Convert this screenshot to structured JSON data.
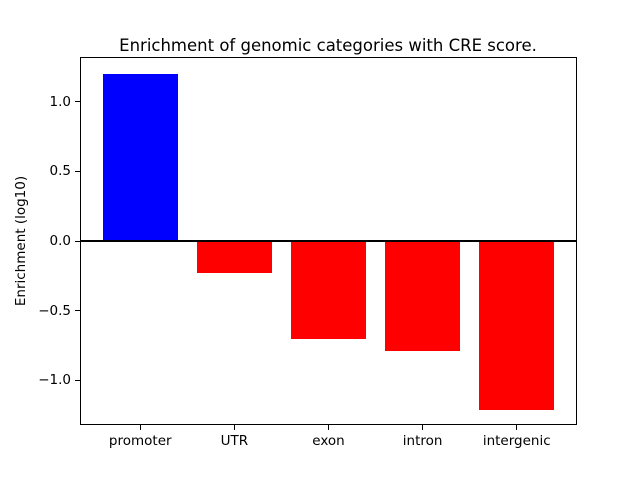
{
  "figure": {
    "background": "#ffffff"
  },
  "chart_data": {
    "type": "bar",
    "title": "Enrichment of genomic categories with CRE score.",
    "xlabel": "",
    "ylabel": "Enrichment (log10)",
    "categories": [
      "promoter",
      "UTR",
      "exon",
      "intron",
      "intergenic"
    ],
    "values": [
      1.2,
      -0.23,
      -0.7,
      -0.79,
      -1.21
    ],
    "bar_colors": [
      "#0000ff",
      "#ff0000",
      "#ff0000",
      "#ff0000",
      "#ff0000"
    ],
    "positive_color": "#0000ff",
    "negative_color": "#ff0000",
    "ylim": [
      -1.32,
      1.32
    ],
    "xlim": [
      -0.64,
      4.64
    ],
    "bar_width_units": 0.8,
    "yticks": [
      {
        "value": 1.0,
        "label": "1.0"
      },
      {
        "value": 0.5,
        "label": "0.5"
      },
      {
        "value": 0.0,
        "label": "0.0"
      },
      {
        "value": -0.5,
        "label": "−0.5"
      },
      {
        "value": -1.0,
        "label": "−1.0"
      }
    ],
    "grid": false,
    "zero_line": {
      "value": 0.0,
      "color": "#000000"
    }
  }
}
